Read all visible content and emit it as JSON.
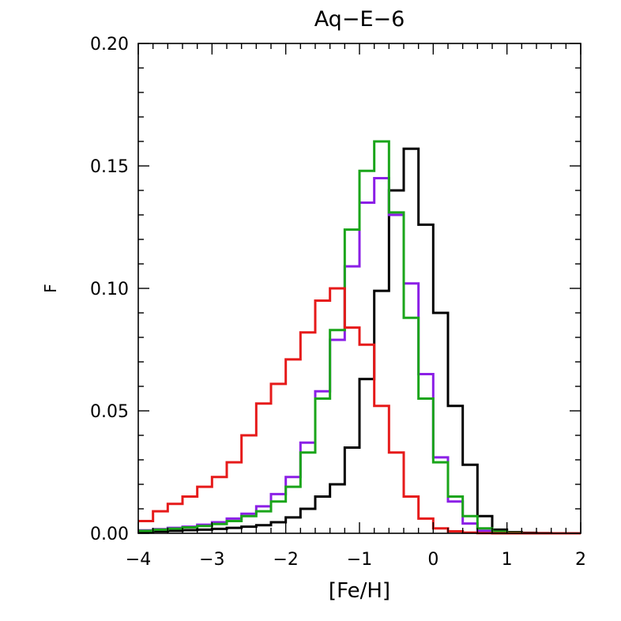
{
  "chart_data": {
    "type": "step",
    "title": "Aq−E−6",
    "xlabel": "[Fe/H]",
    "ylabel": "F",
    "xlim": [
      -4,
      2
    ],
    "ylim": [
      0,
      0.2
    ],
    "x_ticks": [
      -4,
      -3,
      -2,
      -1,
      0,
      1,
      2
    ],
    "x_tick_labels": [
      "−4",
      "−3",
      "−2",
      "−1",
      "0",
      "1",
      "2"
    ],
    "y_ticks": [
      0,
      0.05,
      0.1,
      0.15,
      0.2
    ],
    "y_tick_labels": [
      "0.00",
      "0.05",
      "0.10",
      "0.15",
      "0.20"
    ],
    "bin_edges": [
      -4.0,
      -3.8,
      -3.6,
      -3.4,
      -3.2,
      -3.0,
      -2.8,
      -2.6,
      -2.4,
      -2.2,
      -2.0,
      -1.8,
      -1.6,
      -1.4,
      -1.2,
      -1.0,
      -0.8,
      -0.6,
      -0.4,
      -0.2,
      0.0,
      0.2,
      0.4,
      0.6,
      0.8,
      1.0,
      1.2,
      1.4,
      1.6,
      1.8,
      2.0
    ],
    "series": [
      {
        "name": "black",
        "color": "#000000",
        "values": [
          0.0005,
          0.0008,
          0.001,
          0.0013,
          0.0015,
          0.0018,
          0.0022,
          0.0027,
          0.0033,
          0.0045,
          0.0065,
          0.01,
          0.015,
          0.02,
          0.035,
          0.063,
          0.099,
          0.14,
          0.157,
          0.126,
          0.09,
          0.052,
          0.028,
          0.007,
          0.0015,
          0.0005,
          0.0002,
          0.0001,
          0.0,
          0.0
        ]
      },
      {
        "name": "purple",
        "color": "#8b1fe6",
        "values": [
          0.0012,
          0.0017,
          0.0022,
          0.0027,
          0.0035,
          0.0045,
          0.006,
          0.008,
          0.011,
          0.016,
          0.023,
          0.037,
          0.058,
          0.079,
          0.109,
          0.135,
          0.145,
          0.13,
          0.102,
          0.065,
          0.031,
          0.013,
          0.004,
          0.001,
          0.0004,
          0.0001,
          0.0,
          0.0,
          0.0,
          0.0
        ]
      },
      {
        "name": "green",
        "color": "#1aa51a",
        "values": [
          0.001,
          0.0015,
          0.0019,
          0.0024,
          0.003,
          0.0038,
          0.005,
          0.007,
          0.009,
          0.013,
          0.019,
          0.033,
          0.055,
          0.083,
          0.124,
          0.148,
          0.16,
          0.131,
          0.088,
          0.055,
          0.029,
          0.015,
          0.007,
          0.002,
          0.0007,
          0.0002,
          0.0,
          0.0,
          0.0,
          0.0
        ]
      },
      {
        "name": "red",
        "color": "#e61a1a",
        "values": [
          0.005,
          0.009,
          0.012,
          0.015,
          0.019,
          0.023,
          0.029,
          0.04,
          0.053,
          0.061,
          0.071,
          0.082,
          0.095,
          0.1,
          0.084,
          0.077,
          0.052,
          0.033,
          0.015,
          0.006,
          0.002,
          0.0008,
          0.0003,
          0.0001,
          0.0,
          0.0,
          0.0,
          0.0,
          0.0,
          0.0
        ]
      }
    ]
  }
}
